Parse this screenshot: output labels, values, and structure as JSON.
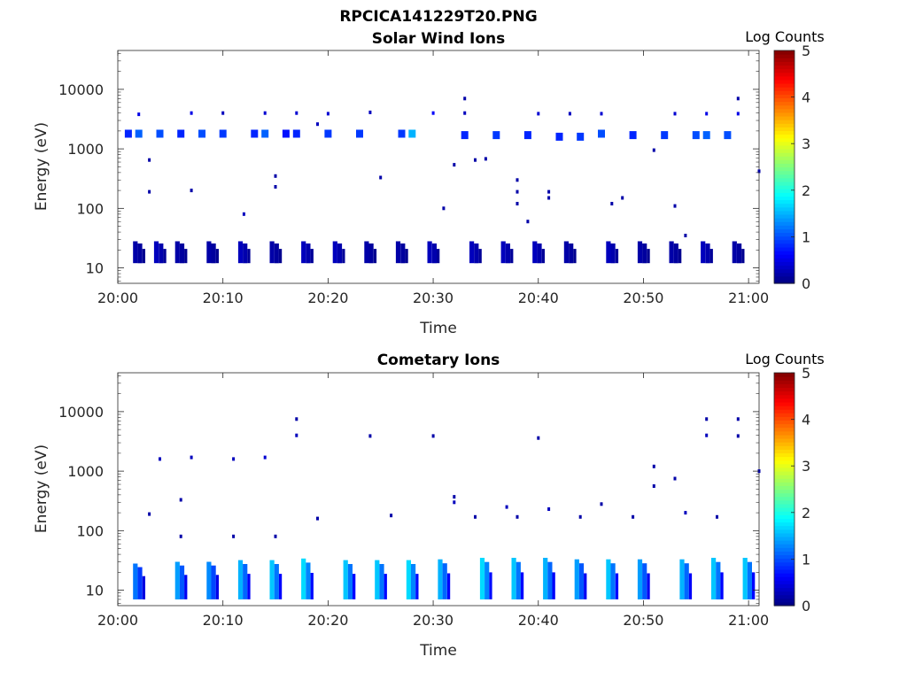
{
  "figure_title": "RPCICA141229T20.PNG",
  "colorbar": {
    "label": "Log Counts",
    "min": 0,
    "max": 5,
    "ticks": [
      "0",
      "1",
      "2",
      "3",
      "4",
      "5"
    ],
    "colormap": "jet"
  },
  "chart_data": [
    {
      "type": "heatmap",
      "title": "Solar Wind Ions",
      "xlabel": "Time",
      "ylabel": "Energy (eV)",
      "x_ticks": [
        "20:00",
        "20:10",
        "20:20",
        "20:30",
        "20:40",
        "20:50",
        "21:00"
      ],
      "xlim": [
        "20:00",
        "21:01"
      ],
      "y_scale": "log",
      "y_ticks": [
        "10",
        "100",
        "1000",
        "10000"
      ],
      "ylim": [
        5.5,
        45000
      ],
      "points": [
        {
          "t": "20:01",
          "e": 1800,
          "v": 0.8
        },
        {
          "t": "20:02",
          "e": 1800,
          "v": 1.1
        },
        {
          "t": "20:02",
          "e": 3800,
          "v": 0.5
        },
        {
          "t": "20:03",
          "e": 650,
          "v": 0.2
        },
        {
          "t": "20:03",
          "e": 190,
          "v": 0.2
        },
        {
          "t": "20:04",
          "e": 1800,
          "v": 1.0
        },
        {
          "t": "20:06",
          "e": 1800,
          "v": 0.8
        },
        {
          "t": "20:07",
          "e": 200,
          "v": 0.2
        },
        {
          "t": "20:07",
          "e": 4000,
          "v": 0.5
        },
        {
          "t": "20:08",
          "e": 1800,
          "v": 1.0
        },
        {
          "t": "20:10",
          "e": 4000,
          "v": 0.3
        },
        {
          "t": "20:10",
          "e": 1800,
          "v": 0.9
        },
        {
          "t": "20:12",
          "e": 80,
          "v": 0.3
        },
        {
          "t": "20:13",
          "e": 1800,
          "v": 0.8
        },
        {
          "t": "20:14",
          "e": 4000,
          "v": 0.4
        },
        {
          "t": "20:14",
          "e": 1800,
          "v": 1.1
        },
        {
          "t": "20:15",
          "e": 350,
          "v": 0.2
        },
        {
          "t": "20:15",
          "e": 230,
          "v": 0.2
        },
        {
          "t": "20:16",
          "e": 1800,
          "v": 0.7
        },
        {
          "t": "20:17",
          "e": 4000,
          "v": 0.4
        },
        {
          "t": "20:17",
          "e": 1800,
          "v": 0.8
        },
        {
          "t": "20:19",
          "e": 2600,
          "v": 0.3
        },
        {
          "t": "20:20",
          "e": 1800,
          "v": 0.9
        },
        {
          "t": "20:20",
          "e": 3900,
          "v": 0.4
        },
        {
          "t": "20:23",
          "e": 1800,
          "v": 0.9
        },
        {
          "t": "20:24",
          "e": 4100,
          "v": 0.3
        },
        {
          "t": "20:25",
          "e": 330,
          "v": 0.2
        },
        {
          "t": "20:27",
          "e": 1800,
          "v": 0.9
        },
        {
          "t": "20:28",
          "e": 1800,
          "v": 1.5
        },
        {
          "t": "20:30",
          "e": 4000,
          "v": 0.6
        },
        {
          "t": "20:31",
          "e": 100,
          "v": 0.2
        },
        {
          "t": "20:32",
          "e": 540,
          "v": 0.2
        },
        {
          "t": "20:33",
          "e": 7000,
          "v": 0.2
        },
        {
          "t": "20:33",
          "e": 4000,
          "v": 0.3
        },
        {
          "t": "20:33",
          "e": 1700,
          "v": 0.8
        },
        {
          "t": "20:34",
          "e": 650,
          "v": 0.2
        },
        {
          "t": "20:35",
          "e": 680,
          "v": 0.2
        },
        {
          "t": "20:36",
          "e": 1700,
          "v": 0.9
        },
        {
          "t": "20:38",
          "e": 190,
          "v": 0.2
        },
        {
          "t": "20:38",
          "e": 120,
          "v": 0.2
        },
        {
          "t": "20:38",
          "e": 300,
          "v": 0.2
        },
        {
          "t": "20:39",
          "e": 60,
          "v": 0.2
        },
        {
          "t": "20:39",
          "e": 1700,
          "v": 0.8
        },
        {
          "t": "20:40",
          "e": 3900,
          "v": 0.4
        },
        {
          "t": "20:41",
          "e": 190,
          "v": 0.2
        },
        {
          "t": "20:41",
          "e": 150,
          "v": 0.2
        },
        {
          "t": "20:42",
          "e": 1600,
          "v": 0.8
        },
        {
          "t": "20:43",
          "e": 3900,
          "v": 0.3
        },
        {
          "t": "20:44",
          "e": 1600,
          "v": 0.9
        },
        {
          "t": "20:46",
          "e": 3900,
          "v": 0.4
        },
        {
          "t": "20:46",
          "e": 1800,
          "v": 1.0
        },
        {
          "t": "20:47",
          "e": 120,
          "v": 0.2
        },
        {
          "t": "20:48",
          "e": 150,
          "v": 0.2
        },
        {
          "t": "20:49",
          "e": 1700,
          "v": 0.8
        },
        {
          "t": "20:51",
          "e": 950,
          "v": 0.2
        },
        {
          "t": "20:52",
          "e": 1700,
          "v": 0.9
        },
        {
          "t": "20:53",
          "e": 3900,
          "v": 0.4
        },
        {
          "t": "20:53",
          "e": 110,
          "v": 0.2
        },
        {
          "t": "20:54",
          "e": 35,
          "v": 0.2
        },
        {
          "t": "20:55",
          "e": 1700,
          "v": 1.0
        },
        {
          "t": "20:56",
          "e": 1700,
          "v": 1.1
        },
        {
          "t": "20:56",
          "e": 3900,
          "v": 0.5
        },
        {
          "t": "20:58",
          "e": 1700,
          "v": 1.0
        },
        {
          "t": "20:59",
          "e": 3900,
          "v": 0.5
        },
        {
          "t": "20:59",
          "e": 7000,
          "v": 0.2
        },
        {
          "t": "21:01",
          "e": 420,
          "v": 0.2
        }
      ],
      "bands": [
        {
          "t": "20:02",
          "emin": 12,
          "emax": 28,
          "v": 0.2
        },
        {
          "t": "20:04",
          "emin": 12,
          "emax": 28,
          "v": 0.3
        },
        {
          "t": "20:06",
          "emin": 12,
          "emax": 28,
          "v": 0.2
        },
        {
          "t": "20:09",
          "emin": 12,
          "emax": 28,
          "v": 0.2
        },
        {
          "t": "20:12",
          "emin": 12,
          "emax": 28,
          "v": 0.3
        },
        {
          "t": "20:15",
          "emin": 12,
          "emax": 28,
          "v": 0.2
        },
        {
          "t": "20:18",
          "emin": 12,
          "emax": 28,
          "v": 0.3
        },
        {
          "t": "20:21",
          "emin": 12,
          "emax": 28,
          "v": 0.3
        },
        {
          "t": "20:24",
          "emin": 12,
          "emax": 28,
          "v": 0.2
        },
        {
          "t": "20:27",
          "emin": 12,
          "emax": 28,
          "v": 0.2
        },
        {
          "t": "20:30",
          "emin": 12,
          "emax": 28,
          "v": 0.3
        },
        {
          "t": "20:34",
          "emin": 12,
          "emax": 28,
          "v": 0.3
        },
        {
          "t": "20:37",
          "emin": 12,
          "emax": 28,
          "v": 0.3
        },
        {
          "t": "20:40",
          "emin": 12,
          "emax": 28,
          "v": 0.3
        },
        {
          "t": "20:43",
          "emin": 12,
          "emax": 28,
          "v": 0.2
        },
        {
          "t": "20:47",
          "emin": 12,
          "emax": 28,
          "v": 0.3
        },
        {
          "t": "20:50",
          "emin": 12,
          "emax": 28,
          "v": 0.2
        },
        {
          "t": "20:53",
          "emin": 12,
          "emax": 28,
          "v": 0.2
        },
        {
          "t": "20:56",
          "emin": 12,
          "emax": 28,
          "v": 0.3
        },
        {
          "t": "20:59",
          "emin": 12,
          "emax": 28,
          "v": 0.2
        }
      ]
    },
    {
      "type": "heatmap",
      "title": "Cometary Ions",
      "xlabel": "Time",
      "ylabel": "Energy (eV)",
      "x_ticks": [
        "20:00",
        "20:10",
        "20:20",
        "20:30",
        "20:40",
        "20:50",
        "21:00"
      ],
      "xlim": [
        "20:00",
        "21:01"
      ],
      "y_scale": "log",
      "y_ticks": [
        "10",
        "100",
        "1000",
        "10000"
      ],
      "ylim": [
        5.5,
        45000
      ],
      "points": [
        {
          "t": "20:03",
          "e": 190,
          "v": 0.2
        },
        {
          "t": "20:04",
          "e": 1600,
          "v": 0.3
        },
        {
          "t": "20:06",
          "e": 330,
          "v": 0.2
        },
        {
          "t": "20:06",
          "e": 80,
          "v": 0.2
        },
        {
          "t": "20:07",
          "e": 1700,
          "v": 0.3
        },
        {
          "t": "20:11",
          "e": 1600,
          "v": 0.3
        },
        {
          "t": "20:11",
          "e": 80,
          "v": 0.2
        },
        {
          "t": "20:14",
          "e": 1700,
          "v": 0.4
        },
        {
          "t": "20:15",
          "e": 80,
          "v": 0.2
        },
        {
          "t": "20:17",
          "e": 7500,
          "v": 0.2
        },
        {
          "t": "20:17",
          "e": 4000,
          "v": 0.3
        },
        {
          "t": "20:19",
          "e": 160,
          "v": 0.2
        },
        {
          "t": "20:24",
          "e": 3900,
          "v": 0.2
        },
        {
          "t": "20:26",
          "e": 180,
          "v": 0.2
        },
        {
          "t": "20:30",
          "e": 3900,
          "v": 0.2
        },
        {
          "t": "20:32",
          "e": 300,
          "v": 0.3
        },
        {
          "t": "20:32",
          "e": 370,
          "v": 0.2
        },
        {
          "t": "20:34",
          "e": 170,
          "v": 0.2
        },
        {
          "t": "20:37",
          "e": 250,
          "v": 0.3
        },
        {
          "t": "20:38",
          "e": 170,
          "v": 0.2
        },
        {
          "t": "20:40",
          "e": 3600,
          "v": 0.2
        },
        {
          "t": "20:41",
          "e": 230,
          "v": 0.3
        },
        {
          "t": "20:44",
          "e": 170,
          "v": 0.2
        },
        {
          "t": "20:46",
          "e": 280,
          "v": 0.2
        },
        {
          "t": "20:49",
          "e": 170,
          "v": 0.2
        },
        {
          "t": "20:51",
          "e": 1200,
          "v": 0.2
        },
        {
          "t": "20:51",
          "e": 560,
          "v": 0.2
        },
        {
          "t": "20:53",
          "e": 750,
          "v": 0.2
        },
        {
          "t": "20:54",
          "e": 200,
          "v": 0.3
        },
        {
          "t": "20:56",
          "e": 7500,
          "v": 0.2
        },
        {
          "t": "20:56",
          "e": 4000,
          "v": 0.3
        },
        {
          "t": "20:57",
          "e": 170,
          "v": 0.2
        },
        {
          "t": "20:59",
          "e": 7500,
          "v": 0.2
        },
        {
          "t": "20:59",
          "e": 3900,
          "v": 0.2
        },
        {
          "t": "21:01",
          "e": 1000,
          "v": 0.2
        }
      ],
      "bands": [
        {
          "t": "20:02",
          "emin": 7,
          "emax": 28,
          "v": 1.2
        },
        {
          "t": "20:06",
          "emin": 7,
          "emax": 30,
          "v": 1.4
        },
        {
          "t": "20:09",
          "emin": 7,
          "emax": 30,
          "v": 1.3
        },
        {
          "t": "20:12",
          "emin": 7,
          "emax": 32,
          "v": 1.5
        },
        {
          "t": "20:15",
          "emin": 7,
          "emax": 32,
          "v": 1.6
        },
        {
          "t": "20:18",
          "emin": 7,
          "emax": 34,
          "v": 1.7
        },
        {
          "t": "20:22",
          "emin": 7,
          "emax": 32,
          "v": 1.6
        },
        {
          "t": "20:25",
          "emin": 7,
          "emax": 32,
          "v": 1.6
        },
        {
          "t": "20:28",
          "emin": 7,
          "emax": 32,
          "v": 1.7
        },
        {
          "t": "20:31",
          "emin": 7,
          "emax": 33,
          "v": 1.5
        },
        {
          "t": "20:35",
          "emin": 7,
          "emax": 35,
          "v": 1.7
        },
        {
          "t": "20:38",
          "emin": 7,
          "emax": 35,
          "v": 1.6
        },
        {
          "t": "20:41",
          "emin": 7,
          "emax": 35,
          "v": 1.5
        },
        {
          "t": "20:44",
          "emin": 7,
          "emax": 33,
          "v": 1.4
        },
        {
          "t": "20:47",
          "emin": 7,
          "emax": 33,
          "v": 1.6
        },
        {
          "t": "20:50",
          "emin": 7,
          "emax": 33,
          "v": 1.4
        },
        {
          "t": "20:54",
          "emin": 7,
          "emax": 33,
          "v": 1.5
        },
        {
          "t": "20:57",
          "emin": 7,
          "emax": 35,
          "v": 1.6
        },
        {
          "t": "21:00",
          "emin": 7,
          "emax": 35,
          "v": 1.6
        }
      ]
    }
  ]
}
